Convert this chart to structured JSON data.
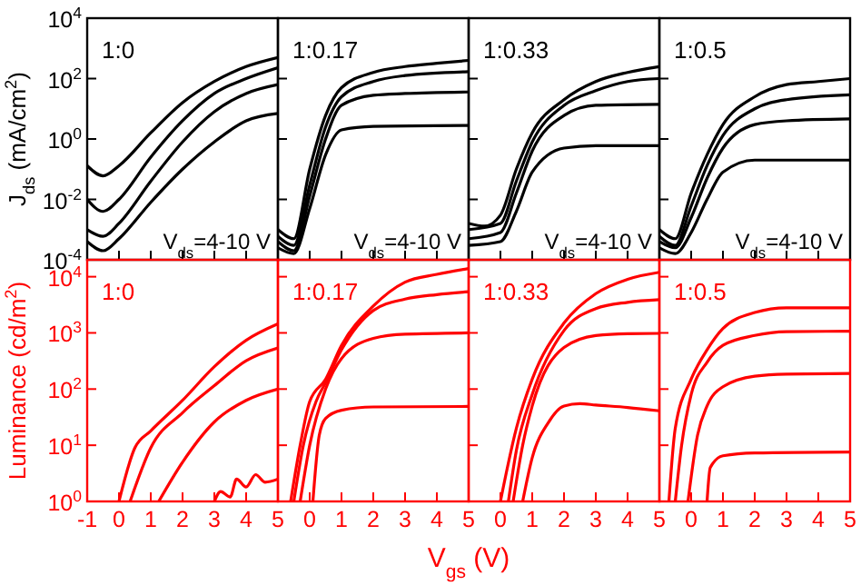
{
  "chart_data": [
    {
      "type": "line",
      "ylabel": "J$_{ds}$ (mA/cm$^{2}$)",
      "annotations": [
        "1:0",
        "V$_{ds}$=4-10 V"
      ],
      "xlim": [
        -1,
        5
      ],
      "xticks": [
        -1,
        0,
        1,
        2,
        3,
        4,
        5
      ],
      "ylim": [
        0.0001,
        10000
      ],
      "yticks": [
        {
          "value": 0.0001,
          "label": "10$^{-4}$"
        },
        {
          "value": 0.01,
          "label": "10$^{-2}$"
        },
        {
          "value": 1,
          "label": "10$^{0}$"
        },
        {
          "value": 100,
          "label": "10$^{2}$"
        },
        {
          "value": 10000,
          "label": "10$^{4}$"
        }
      ],
      "log": true,
      "tick_labels": "y",
      "series": [
        {
          "color": "#000000",
          "x": [
            -1,
            -0.5,
            0,
            1,
            2,
            3,
            4,
            5
          ],
          "values": [
            0.13,
            0.06,
            0.13,
            1.6,
            16,
            80,
            250,
            500
          ]
        },
        {
          "color": "#000000",
          "x": [
            -1,
            -0.5,
            0,
            1,
            2,
            3,
            4,
            5
          ],
          "values": [
            0.01,
            0.004,
            0.01,
            0.25,
            4,
            32,
            100,
            230
          ]
        },
        {
          "color": "#000000",
          "x": [
            -1,
            -0.5,
            0,
            1,
            2,
            3,
            4,
            5
          ],
          "values": [
            0.001,
            0.0006,
            0.0016,
            0.04,
            0.8,
            8,
            32,
            63
          ]
        },
        {
          "color": "#000000",
          "x": [
            -1,
            -0.5,
            0,
            1,
            2,
            3,
            4,
            5
          ],
          "values": [
            0.0004,
            0.0002,
            0.0005,
            0.008,
            0.1,
            0.8,
            4,
            7
          ]
        }
      ]
    },
    {
      "type": "line",
      "annotations": [
        "1:0.17",
        "V$_{ds}$=4-10 V"
      ],
      "xlim": [
        -1,
        5
      ],
      "xticks": [
        -1,
        0,
        1,
        2,
        3,
        4,
        5
      ],
      "ylim": [
        0.0001,
        10000
      ],
      "yticks": [
        0.0001,
        0.01,
        1,
        100,
        10000
      ],
      "log": true,
      "tick_labels": false,
      "series": [
        {
          "color": "#000000",
          "x": [
            -1,
            -0.5,
            0,
            0.5,
            1,
            2,
            3,
            4,
            5
          ],
          "values": [
            0.001,
            0.0005,
            0.1,
            6,
            50,
            160,
            250,
            320,
            400
          ]
        },
        {
          "color": "#000000",
          "x": [
            -1,
            -0.5,
            0,
            0.5,
            1,
            2,
            3,
            5
          ],
          "values": [
            0.0006,
            0.0003,
            0.03,
            2.5,
            25,
            80,
            126,
            170
          ]
        },
        {
          "color": "#000000",
          "x": [
            -1,
            -0.5,
            0,
            0.5,
            1,
            2,
            3,
            5
          ],
          "values": [
            0.0004,
            0.0002,
            0.013,
            1,
            13,
            28,
            32,
            36
          ]
        },
        {
          "color": "#000000",
          "x": [
            -1,
            -0.5,
            0,
            0.5,
            1,
            2,
            5
          ],
          "values": [
            0.00025,
            0.00016,
            0.005,
            0.3,
            2,
            2.6,
            2.8
          ]
        }
      ]
    },
    {
      "type": "line",
      "annotations": [
        "1:0.33",
        "V$_{ds}$=4-10 V"
      ],
      "xlim": [
        -1,
        5
      ],
      "xticks": [
        -1,
        0,
        1,
        2,
        3,
        4,
        5
      ],
      "ylim": [
        0.0001,
        10000
      ],
      "yticks": [
        0.0001,
        0.01,
        1,
        100,
        10000
      ],
      "log": true,
      "tick_labels": false,
      "series": [
        {
          "color": "#000000",
          "x": [
            -1,
            -0.5,
            0,
            0.5,
            1,
            2,
            3,
            4,
            5
          ],
          "values": [
            0.0016,
            0.0013,
            0.003,
            0.1,
            1.6,
            20,
            80,
            160,
            250
          ]
        },
        {
          "color": "#000000",
          "x": [
            -1,
            0,
            0.5,
            1,
            2,
            3,
            4,
            5
          ],
          "values": [
            0.001,
            0.0016,
            0.04,
            0.8,
            13,
            40,
            80,
            100
          ]
        },
        {
          "color": "#000000",
          "x": [
            -1,
            0,
            0.5,
            1,
            2,
            3,
            5
          ],
          "values": [
            0.0005,
            0.0008,
            0.016,
            0.4,
            6,
            13,
            14
          ]
        },
        {
          "color": "#000000",
          "x": [
            -1,
            0,
            0.5,
            1,
            2,
            3,
            5
          ],
          "values": [
            0.0003,
            0.0004,
            0.004,
            0.08,
            0.5,
            0.6,
            0.6
          ]
        }
      ]
    },
    {
      "type": "line",
      "annotations": [
        "1:0.5",
        "V$_{ds}$=4-10 V"
      ],
      "xlim": [
        -1,
        5
      ],
      "xticks": [
        -1,
        0,
        1,
        2,
        3,
        4,
        5
      ],
      "ylim": [
        0.0001,
        10000
      ],
      "yticks": [
        0.0001,
        0.01,
        1,
        100,
        10000
      ],
      "log": true,
      "tick_labels": false,
      "series": [
        {
          "color": "#000000",
          "x": [
            -1,
            -0.5,
            0,
            0.5,
            1,
            2,
            3,
            4,
            5
          ],
          "values": [
            0.001,
            0.0005,
            0.016,
            0.3,
            3,
            25,
            63,
            80,
            100
          ]
        },
        {
          "color": "#000000",
          "x": [
            -1,
            -0.5,
            0,
            0.5,
            1,
            2,
            3,
            5
          ],
          "values": [
            0.0006,
            0.0003,
            0.006,
            0.13,
            1.3,
            10,
            20,
            29
          ]
        },
        {
          "color": "#000000",
          "x": [
            -1,
            -0.5,
            0,
            0.5,
            1,
            2,
            3,
            5
          ],
          "values": [
            0.0004,
            0.00025,
            0.0025,
            0.05,
            0.5,
            3,
            4,
            4.6
          ]
        },
        {
          "color": "#000000",
          "x": [
            -1,
            -0.5,
            0,
            0.5,
            1,
            2,
            5
          ],
          "values": [
            0.00025,
            0.00016,
            0.0008,
            0.01,
            0.08,
            0.2,
            0.2
          ]
        }
      ]
    },
    {
      "type": "line",
      "ylabel": "Luminance (cd/m$^{2}$)",
      "annotations": [
        "1:0"
      ],
      "xlim": [
        -1,
        5
      ],
      "xticks": [
        -1,
        0,
        1,
        2,
        3,
        4,
        5
      ],
      "ylim": [
        1,
        20000
      ],
      "yticks": [
        {
          "value": 1,
          "label": "10$^{0}$"
        },
        {
          "value": 10,
          "label": "10$^{1}$"
        },
        {
          "value": 100,
          "label": "10$^{2}$"
        },
        {
          "value": 1000,
          "label": "10$^{3}$"
        },
        {
          "value": 10000,
          "label": "10$^{4}$"
        }
      ],
      "log": true,
      "series": [
        {
          "color": "#ff0000",
          "x": [
            0,
            0.5,
            1,
            2,
            3,
            4,
            5
          ],
          "values": [
            1,
            9,
            18,
            63,
            250,
            740,
            1450
          ]
        },
        {
          "color": "#ff0000",
          "x": [
            0.35,
            1,
            2,
            3,
            4,
            5
          ],
          "values": [
            1,
            9,
            38,
            115,
            320,
            540
          ]
        },
        {
          "color": "#ff0000",
          "x": [
            1.25,
            2,
            3,
            4,
            5
          ],
          "values": [
            1,
            5,
            26,
            63,
            100
          ]
        },
        {
          "color": "#ff0000",
          "x": [
            3,
            3.2,
            3.5,
            3.7,
            4,
            4.3,
            4.6,
            5
          ],
          "values": [
            1,
            1.5,
            1.2,
            2.5,
            1.8,
            3,
            2.2,
            2.5
          ]
        }
      ]
    },
    {
      "type": "line",
      "annotations": [
        "1:0.17"
      ],
      "xlim": [
        -1,
        5
      ],
      "xticks": [
        0,
        1,
        2,
        3,
        4,
        5
      ],
      "ylim": [
        1,
        20000
      ],
      "yticks": [
        1,
        10,
        100,
        1000,
        10000
      ],
      "log": true,
      "tick_labels": "x",
      "series": [
        {
          "color": "#ff0000",
          "x": [
            -0.6,
            -0.3,
            0,
            0.5,
            1,
            2,
            3,
            4,
            5
          ],
          "values": [
            1,
            10,
            60,
            150,
            600,
            3000,
            8000,
            11000,
            14000
          ]
        },
        {
          "color": "#ff0000",
          "x": [
            -0.5,
            -0.2,
            0.2,
            0.5,
            1,
            2,
            3,
            4,
            5
          ],
          "values": [
            1,
            10,
            60,
            130,
            500,
            2500,
            4000,
            4800,
            5400
          ]
        },
        {
          "color": "#ff0000",
          "x": [
            -0.3,
            0,
            0.5,
            1,
            2,
            3,
            5
          ],
          "values": [
            1,
            10,
            100,
            350,
            800,
            950,
            1000
          ]
        },
        {
          "color": "#ff0000",
          "x": [
            0.1,
            0.3,
            0.5,
            1,
            2,
            5
          ],
          "values": [
            1,
            15,
            30,
            42,
            48,
            49
          ]
        }
      ]
    },
    {
      "type": "line",
      "xlabel": "V$_{gs}$ (V)",
      "annotations": [
        "1:0.33"
      ],
      "xlim": [
        -1,
        5
      ],
      "xticks": [
        0,
        1,
        2,
        3,
        4,
        5
      ],
      "ylim": [
        1,
        20000
      ],
      "yticks": [
        1,
        10,
        100,
        1000,
        10000
      ],
      "log": true,
      "tick_labels": "x",
      "series": [
        {
          "color": "#ff0000",
          "x": [
            0,
            0.5,
            1,
            2,
            3,
            4,
            5
          ],
          "values": [
            1,
            20,
            150,
            1500,
            5000,
            9000,
            12000
          ]
        },
        {
          "color": "#ff0000",
          "x": [
            0.25,
            0.5,
            1,
            2,
            3,
            4,
            5
          ],
          "values": [
            1,
            8,
            80,
            1100,
            2700,
            3500,
            3900
          ]
        },
        {
          "color": "#ff0000",
          "x": [
            0.4,
            0.7,
            1,
            2,
            3,
            4,
            5
          ],
          "values": [
            1,
            10,
            50,
            550,
            900,
            970,
            980
          ]
        },
        {
          "color": "#ff0000",
          "x": [
            0.7,
            1,
            1.5,
            2,
            2.5,
            3,
            4,
            5
          ],
          "values": [
            1,
            6,
            25,
            50,
            55,
            52,
            47,
            41
          ]
        }
      ]
    },
    {
      "type": "line",
      "annotations": [
        "1:0.5"
      ],
      "xlim": [
        -1,
        5
      ],
      "xticks": [
        0,
        1,
        2,
        3,
        4,
        5
      ],
      "ylim": [
        1,
        20000
      ],
      "yticks": [
        1,
        10,
        100,
        1000,
        10000
      ],
      "log": true,
      "tick_labels": "x",
      "series": [
        {
          "color": "#ff0000",
          "x": [
            -0.7,
            -0.5,
            0,
            0.5,
            1,
            2,
            3,
            4,
            5
          ],
          "values": [
            1,
            20,
            150,
            500,
            1200,
            2300,
            2800,
            2800,
            2800
          ]
        },
        {
          "color": "#ff0000",
          "x": [
            -0.5,
            -0.3,
            0,
            0.5,
            1,
            2,
            3,
            5
          ],
          "values": [
            1,
            10,
            80,
            300,
            600,
            900,
            1050,
            1070
          ]
        },
        {
          "color": "#ff0000",
          "x": [
            -0.1,
            0.2,
            0.5,
            1,
            2,
            3,
            5
          ],
          "values": [
            1,
            15,
            50,
            110,
            170,
            185,
            190
          ]
        },
        {
          "color": "#ff0000",
          "x": [
            0.5,
            0.6,
            1,
            2,
            5
          ],
          "values": [
            1,
            4,
            6.5,
            7.3,
            7.6
          ]
        }
      ]
    }
  ]
}
